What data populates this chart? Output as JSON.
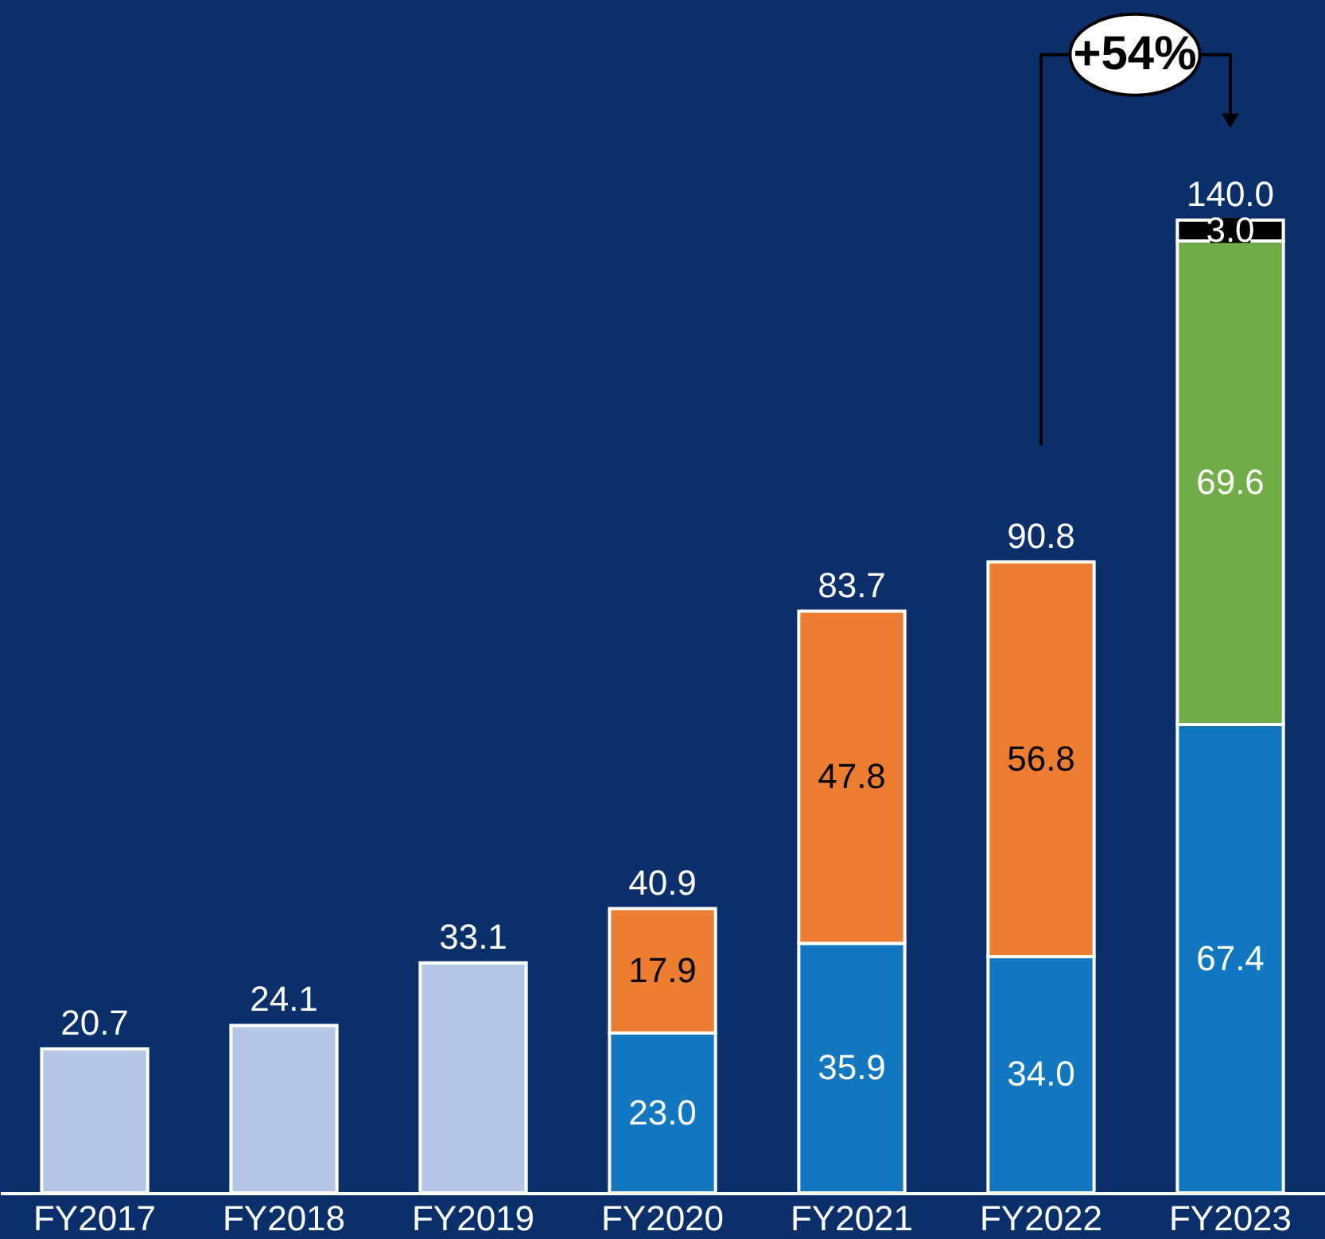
{
  "chart_data": {
    "type": "bar",
    "stacked": true,
    "categories": [
      "FY2017",
      "FY2018",
      "FY2019",
      "FY2020",
      "FY2021",
      "FY2022",
      "FY2023"
    ],
    "series": [
      {
        "color": "#b4c7e7",
        "values": [
          20.7,
          24.1,
          33.1,
          null,
          null,
          null,
          null
        ],
        "value_labels": [
          null,
          null,
          null,
          null,
          null,
          null,
          null
        ]
      },
      {
        "color": "#1177c0",
        "values": [
          null,
          null,
          null,
          23.0,
          35.9,
          34.0,
          67.4
        ],
        "value_labels": [
          null,
          null,
          null,
          "23.0",
          "35.9",
          "34.0",
          "67.4"
        ]
      },
      {
        "color": "#ed7d31",
        "values": [
          null,
          null,
          null,
          17.9,
          47.8,
          56.8,
          null
        ],
        "value_labels": [
          null,
          null,
          null,
          "17.9",
          "47.8",
          "56.8",
          null
        ]
      },
      {
        "color": "#70ad47",
        "values": [
          null,
          null,
          null,
          null,
          null,
          null,
          69.6
        ],
        "value_labels": [
          null,
          null,
          null,
          null,
          null,
          null,
          "69.6"
        ]
      },
      {
        "color": "#000000",
        "values": [
          null,
          null,
          null,
          null,
          null,
          null,
          3.0
        ],
        "value_labels": [
          null,
          null,
          null,
          null,
          null,
          null,
          "3.0"
        ]
      }
    ],
    "totals": [
      "20.7",
      "24.1",
      "33.1",
      "40.9",
      "83.7",
      "90.8",
      "140.0"
    ],
    "annotations": [
      "+54%"
    ],
    "grid": false,
    "legend": false
  }
}
